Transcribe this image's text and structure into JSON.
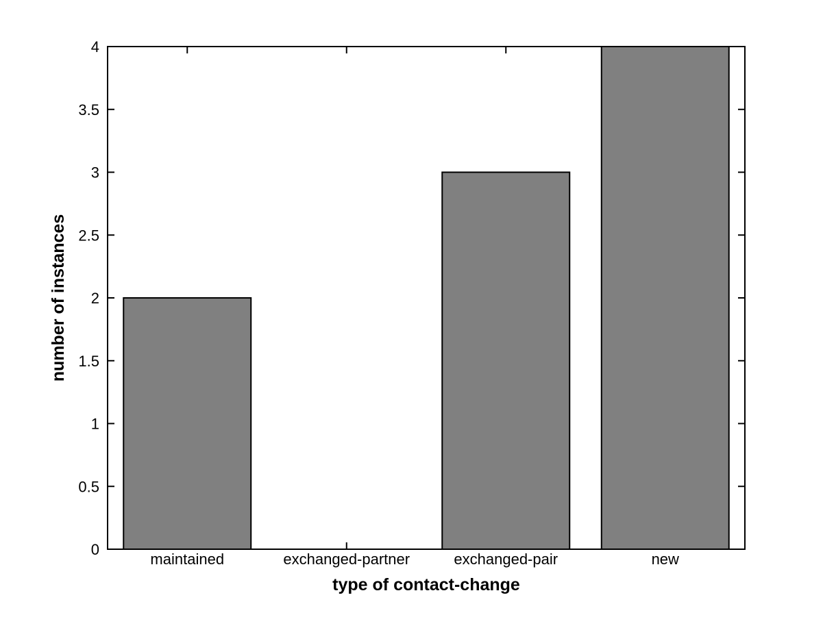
{
  "figure": {
    "background_color": "#ffffff",
    "axis_color": "#000000",
    "bar_fill_color": "#808080",
    "bar_edge_color": "#000000"
  },
  "chart_data": {
    "type": "bar",
    "title": "",
    "xlabel": "type of contact-change",
    "ylabel": "number of instances",
    "categories": [
      "maintained",
      "exchanged-partner",
      "exchanged-pair",
      "new"
    ],
    "values": [
      2,
      0,
      3,
      4
    ],
    "ylim": [
      0,
      4
    ],
    "ytick_step": 0.5,
    "ytick_labels": [
      "0",
      "0.5",
      "1",
      "1.5",
      "2",
      "2.5",
      "3",
      "3.5",
      "4"
    ],
    "grid": false,
    "legend": "none",
    "bar_width_fraction": 0.8,
    "box": true,
    "ticks_mirrored": true
  }
}
